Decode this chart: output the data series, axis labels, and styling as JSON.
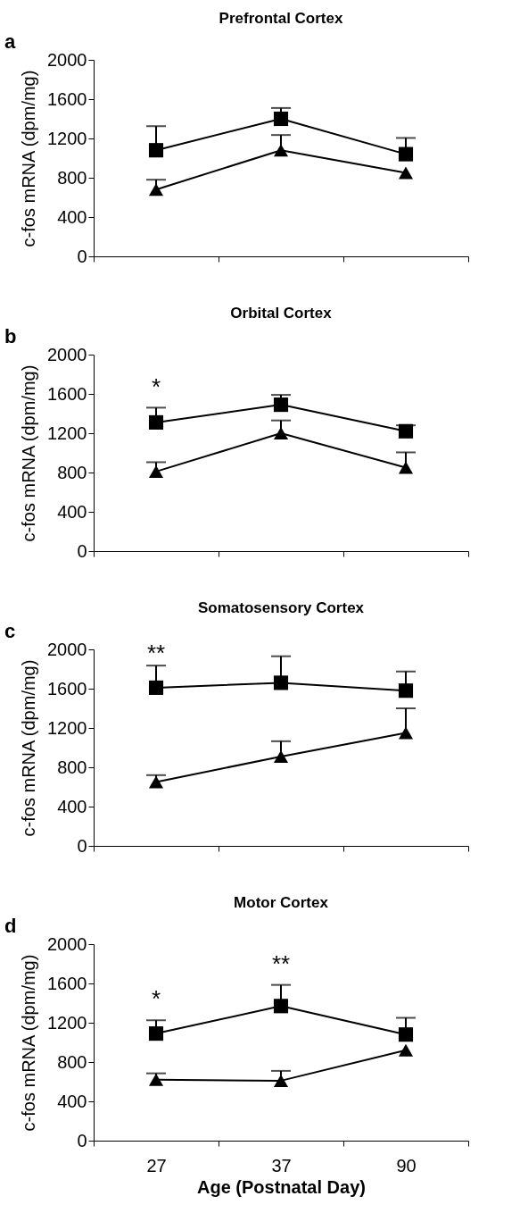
{
  "chart_data": [
    {
      "type": "line",
      "title": "Prefrontal Cortex",
      "ylabel": "c-fos mRNA (dpm/mg)",
      "categories": [
        "27",
        "37",
        "90"
      ],
      "ylim": [
        0,
        2000
      ],
      "yticks": [
        0,
        400,
        800,
        1200,
        1600,
        2000
      ],
      "grid": false,
      "tick_labels": "y",
      "line_style": "solid",
      "annotations": [
        "a"
      ],
      "series": [
        {
          "color": "#000000",
          "marker": "square",
          "values": [
            1080,
            1400,
            1040
          ],
          "errors": [
            [
              1080,
              1325
            ],
            [
              1400,
              1510
            ],
            [
              1040,
              1205
            ]
          ]
        },
        {
          "color": "#000000",
          "marker": "triangle",
          "values": [
            680,
            1080,
            850
          ],
          "errors": [
            [
              680,
              780
            ],
            [
              1080,
              1235
            ],
            null
          ]
        }
      ]
    },
    {
      "type": "line",
      "title": "Orbital Cortex",
      "ylabel": "c-fos mRNA (dpm/mg)",
      "categories": [
        "27",
        "37",
        "90"
      ],
      "ylim": [
        0,
        2000
      ],
      "yticks": [
        0,
        400,
        800,
        1200,
        1600,
        2000
      ],
      "grid": false,
      "tick_labels": "y",
      "line_style": "solid",
      "annotations": [
        "b",
        "*"
      ],
      "series": [
        {
          "color": "#000000",
          "marker": "square",
          "values": [
            1310,
            1490,
            1220
          ],
          "errors": [
            [
              1310,
              1460
            ],
            [
              1490,
              1590
            ],
            [
              1220,
              1280
            ]
          ]
        },
        {
          "color": "#000000",
          "marker": "triangle",
          "values": [
            810,
            1200,
            850
          ],
          "errors": [
            [
              810,
              905
            ],
            [
              1200,
              1330
            ],
            [
              850,
              1005
            ]
          ]
        }
      ]
    },
    {
      "type": "line",
      "title": "Somatosensory Cortex",
      "ylabel": "c-fos mRNA (dpm/mg)",
      "categories": [
        "27",
        "37",
        "90"
      ],
      "ylim": [
        0,
        2000
      ],
      "yticks": [
        0,
        400,
        800,
        1200,
        1600,
        2000
      ],
      "grid": false,
      "tick_labels": "y",
      "line_style": "solid",
      "annotations": [
        "c",
        "**"
      ],
      "series": [
        {
          "color": "#000000",
          "marker": "square",
          "values": [
            1610,
            1660,
            1580
          ],
          "errors": [
            [
              1610,
              1835
            ],
            [
              1660,
              1930
            ],
            [
              1580,
              1775
            ]
          ]
        },
        {
          "color": "#000000",
          "marker": "triangle",
          "values": [
            650,
            910,
            1150
          ],
          "errors": [
            [
              650,
              720
            ],
            [
              910,
              1065
            ],
            [
              1150,
              1400
            ]
          ]
        }
      ]
    },
    {
      "type": "line",
      "title": "Motor Cortex",
      "xlabel": "Age (Postnatal Day)",
      "ylabel": "c-fos mRNA (dpm/mg)",
      "categories": [
        "27",
        "37",
        "90"
      ],
      "ylim": [
        0,
        2000
      ],
      "yticks": [
        0,
        400,
        800,
        1200,
        1600,
        2000
      ],
      "grid": false,
      "line_style": "solid",
      "annotations": [
        "d",
        "*",
        "**"
      ],
      "series": [
        {
          "color": "#000000",
          "marker": "square",
          "values": [
            1090,
            1370,
            1080
          ],
          "errors": [
            [
              1090,
              1225
            ],
            [
              1370,
              1585
            ],
            [
              1080,
              1250
            ]
          ]
        },
        {
          "color": "#000000",
          "marker": "triangle",
          "values": [
            620,
            610,
            920
          ],
          "errors": [
            [
              620,
              685
            ],
            [
              610,
              710
            ],
            null
          ]
        }
      ]
    }
  ]
}
